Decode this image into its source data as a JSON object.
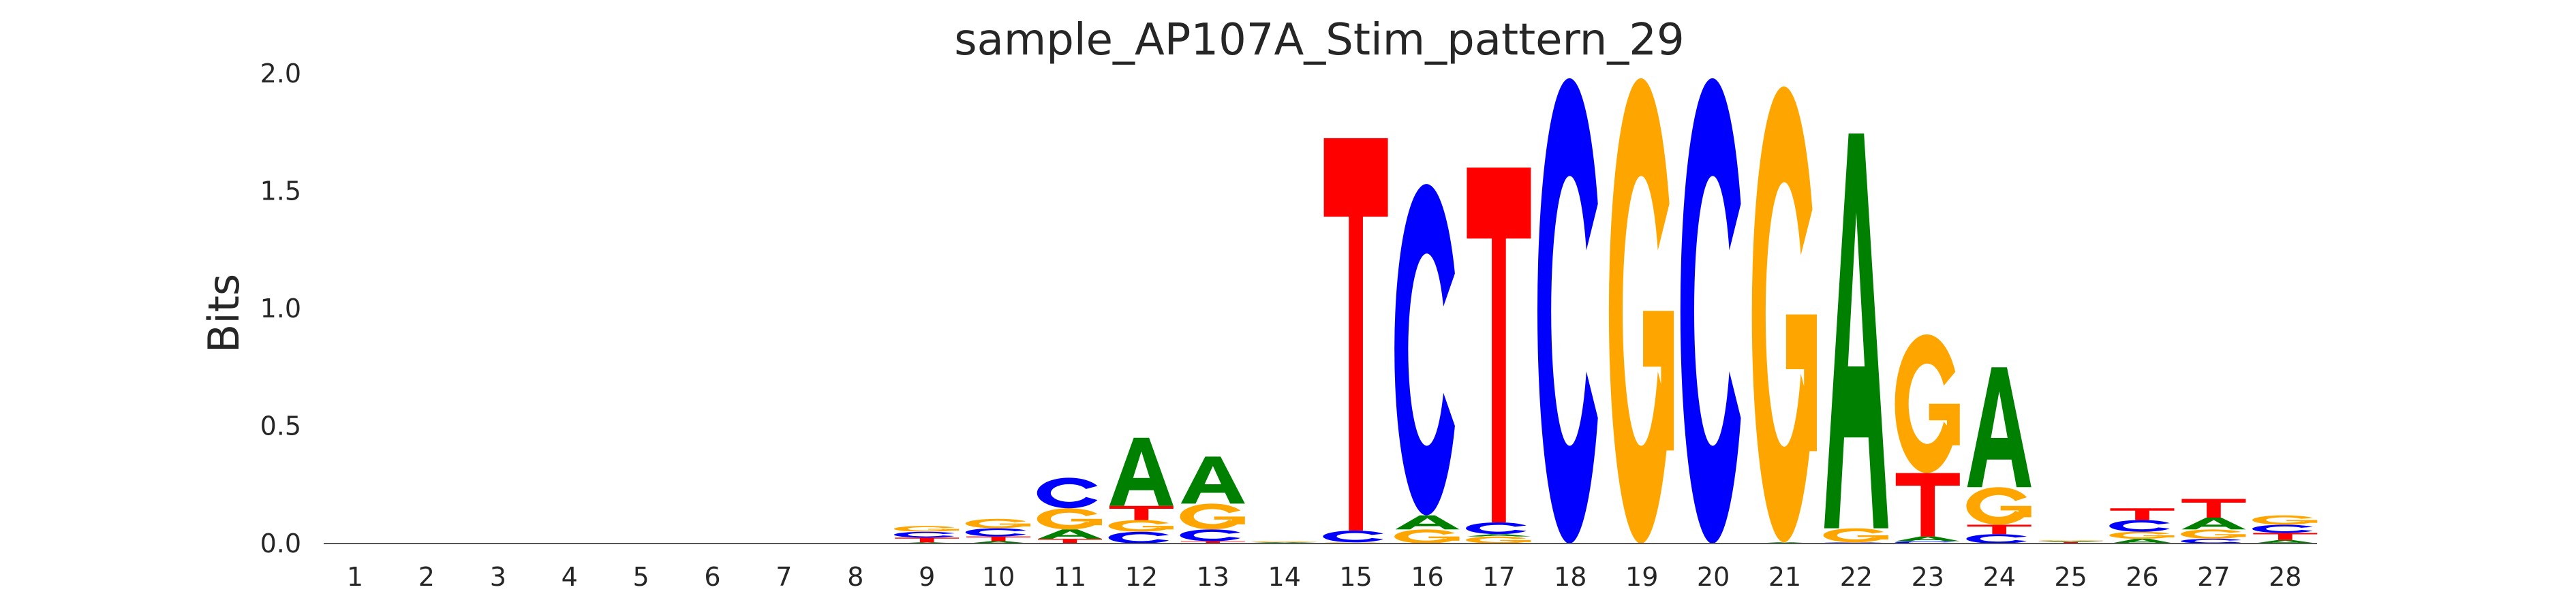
{
  "chart_data": {
    "type": "sequence-logo",
    "title": "sample_AP107A_Stim_pattern_29",
    "xlabel": "",
    "ylabel": "Bits",
    "ylim": [
      0,
      2.0
    ],
    "yticks": [
      "0.0",
      "0.5",
      "1.0",
      "1.5",
      "2.0"
    ],
    "ytick_values": [
      0,
      0.5,
      1.0,
      1.5,
      2.0
    ],
    "positions": [
      "1",
      "2",
      "3",
      "4",
      "5",
      "6",
      "7",
      "8",
      "9",
      "10",
      "11",
      "12",
      "13",
      "14",
      "15",
      "16",
      "17",
      "18",
      "19",
      "20",
      "21",
      "22",
      "23",
      "24",
      "25",
      "26",
      "27",
      "28"
    ],
    "colors": {
      "A": "#008000",
      "C": "#0000ff",
      "G": "#ffa500",
      "T": "#ff0000"
    },
    "stacks": [
      [],
      [],
      [],
      [],
      [],
      [],
      [],
      [],
      [
        {
          "l": "A",
          "v": 0.005
        },
        {
          "l": "T",
          "v": 0.02
        },
        {
          "l": "C",
          "v": 0.025
        },
        {
          "l": "G",
          "v": 0.025
        }
      ],
      [
        {
          "l": "A",
          "v": 0.01
        },
        {
          "l": "T",
          "v": 0.02
        },
        {
          "l": "C",
          "v": 0.035
        },
        {
          "l": "G",
          "v": 0.04
        }
      ],
      [
        {
          "l": "T",
          "v": 0.02
        },
        {
          "l": "A",
          "v": 0.04
        },
        {
          "l": "G",
          "v": 0.09
        },
        {
          "l": "C",
          "v": 0.13
        }
      ],
      [
        {
          "l": "C",
          "v": 0.05
        },
        {
          "l": "G",
          "v": 0.05
        },
        {
          "l": "T",
          "v": 0.06
        },
        {
          "l": "A",
          "v": 0.29
        }
      ],
      [
        {
          "l": "T",
          "v": 0.01
        },
        {
          "l": "C",
          "v": 0.05
        },
        {
          "l": "G",
          "v": 0.11
        },
        {
          "l": "A",
          "v": 0.2
        }
      ],
      [
        {
          "l": "C",
          "v": 0.003
        },
        {
          "l": "A",
          "v": 0.003
        },
        {
          "l": "G",
          "v": 0.004
        }
      ],
      [
        {
          "l": "G",
          "v": 0.005
        },
        {
          "l": "C",
          "v": 0.05
        },
        {
          "l": "T",
          "v": 1.67
        }
      ],
      [
        {
          "l": "G",
          "v": 0.06
        },
        {
          "l": "A",
          "v": 0.06
        },
        {
          "l": "C",
          "v": 1.41
        }
      ],
      [
        {
          "l": "G",
          "v": 0.03
        },
        {
          "l": "A",
          "v": 0.01
        },
        {
          "l": "C",
          "v": 0.05
        },
        {
          "l": "T",
          "v": 1.51
        }
      ],
      [
        {
          "l": "C",
          "v": 1.98
        }
      ],
      [
        {
          "l": "G",
          "v": 1.98
        }
      ],
      [
        {
          "l": "C",
          "v": 1.98
        }
      ],
      [
        {
          "l": "A",
          "v": 0.005
        },
        {
          "l": "G",
          "v": 1.94
        }
      ],
      [
        {
          "l": "C",
          "v": 0.005
        },
        {
          "l": "G",
          "v": 0.06
        },
        {
          "l": "A",
          "v": 1.68
        }
      ],
      [
        {
          "l": "C",
          "v": 0.01
        },
        {
          "l": "A",
          "v": 0.02
        },
        {
          "l": "T",
          "v": 0.27
        },
        {
          "l": "G",
          "v": 0.59
        }
      ],
      [
        {
          "l": "C",
          "v": 0.04
        },
        {
          "l": "T",
          "v": 0.04
        },
        {
          "l": "G",
          "v": 0.16
        },
        {
          "l": "A",
          "v": 0.51
        }
      ],
      [
        {
          "l": "C",
          "v": 0.003
        },
        {
          "l": "T",
          "v": 0.004
        },
        {
          "l": "A",
          "v": 0.004
        },
        {
          "l": "G",
          "v": 0.003
        }
      ],
      [
        {
          "l": "A",
          "v": 0.02
        },
        {
          "l": "G",
          "v": 0.03
        },
        {
          "l": "C",
          "v": 0.05
        },
        {
          "l": "T",
          "v": 0.05
        }
      ],
      [
        {
          "l": "C",
          "v": 0.02
        },
        {
          "l": "G",
          "v": 0.04
        },
        {
          "l": "A",
          "v": 0.05
        },
        {
          "l": "T",
          "v": 0.08
        }
      ],
      [
        {
          "l": "A",
          "v": 0.015
        },
        {
          "l": "T",
          "v": 0.03
        },
        {
          "l": "C",
          "v": 0.035
        },
        {
          "l": "G",
          "v": 0.04
        }
      ]
    ]
  }
}
